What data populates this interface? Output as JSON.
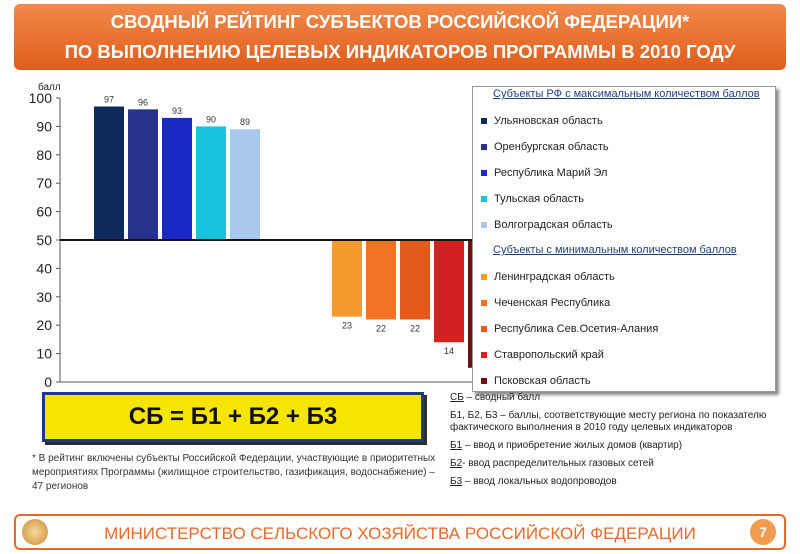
{
  "header": {
    "line1": "СВОДНЫЙ РЕЙТИНГ СУБЪЕКТОВ РОССИЙСКОЙ ФЕДЕРАЦИИ*",
    "line2": "ПО ВЫПОЛНЕНИЮ ЦЕЛЕВЫХ ИНДИКАТОРОВ ПРОГРАММЫ В 2010 ГОДУ"
  },
  "chart_data": {
    "type": "bar",
    "ylabel": "балл",
    "ylim": [
      0,
      100
    ],
    "baseline": 50,
    "yticks": [
      0,
      10,
      20,
      30,
      40,
      50,
      60,
      70,
      80,
      90,
      100
    ],
    "grid": false,
    "legend_position": "right",
    "series": [
      {
        "name": "Ульяновская область",
        "value": 97,
        "color": "#0e2a5c"
      },
      {
        "name": "Оренбургская область",
        "value": 96,
        "color": "#27328c"
      },
      {
        "name": "Республика Марий Эл",
        "value": 93,
        "color": "#1a29c4"
      },
      {
        "name": "Тульская область",
        "value": 90,
        "color": "#19c2dd"
      },
      {
        "name": "Волгоградская область",
        "value": 89,
        "color": "#a8c8ec"
      },
      {
        "name": "Ленинградская область",
        "value": 23,
        "color": "#f59a2c"
      },
      {
        "name": "Чеченская Республика",
        "value": 22,
        "color": "#f07424"
      },
      {
        "name": "Республика Сев.Осетия-Алания",
        "value": 22,
        "color": "#e45a1c"
      },
      {
        "name": "Ставропольский край",
        "value": 14,
        "color": "#d42020"
      },
      {
        "name": "Псковская область",
        "value": 5,
        "color": "#6e1010"
      }
    ]
  },
  "legend": {
    "max_heading": "Субъекты РФ с максимальным количеством баллов",
    "min_heading": "Субъекты с минимальным количеством баллов"
  },
  "formula": "СБ = Б1 + Б2 + Б3",
  "footnote": "* В рейтинг включены субъекты Российской Федерации, участвующие в приоритетных мероприятиях Программы (жилищное строительство, газификация, водоснабжение) – 47 регионов",
  "notes": {
    "sb_abbr": "СБ",
    "sb_text": " – сводный балл",
    "b_text": "Б1, Б2, Б3 – баллы, соответствующие месту региона по показателю фактического выполнения в 2010 году целевых индикаторов",
    "b1_abbr": "Б1",
    "b1_text": " – ввод и приобретение жилых домов (квартир)",
    "b2_abbr": "Б2",
    "b2_text": "- ввод распределительных газовых сетей",
    "b3_abbr": "Б3",
    "b3_text": " – ввод локальных водопроводов"
  },
  "footer": {
    "text": "МИНИСТЕРСТВО СЕЛЬСКОГО ХОЗЯЙСТВА РОССИЙСКОЙ ФЕДЕРАЦИИ",
    "page": "7"
  }
}
